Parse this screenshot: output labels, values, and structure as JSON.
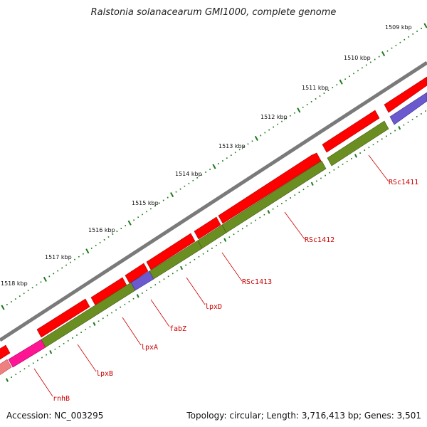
{
  "title": "Ralstonia solanacearum GMI1000, complete genome",
  "footer": {
    "accession": "Accession: NC_003295",
    "summary": "Topology: circular; Length: 3,716,413 bp; Genes: 3,501"
  },
  "colors": {
    "backbone": "#808080",
    "forward_cds": "#ff0000",
    "reverse_cds": "#6b8e23",
    "reverse_cds_blue": "#6a5acd",
    "reverse_cds_magenta": "#ff1493",
    "reverse_cds_pink": "#f08080",
    "ticks": "#1a7a1a",
    "label": "#cc0000"
  },
  "scale_labels": [
    "1509 kbp",
    "1510 kbp",
    "1511 kbp",
    "1512 kbp",
    "1513 kbp",
    "1514 kbp",
    "1515 kbp",
    "1516 kbp",
    "1517 kbp",
    "1518 kbp"
  ],
  "gene_labels": [
    "RSc1411",
    "RSc1412",
    "RSc1413",
    "lpxD",
    "fabZ",
    "lpxA",
    "lpxB",
    "rnhB"
  ]
}
